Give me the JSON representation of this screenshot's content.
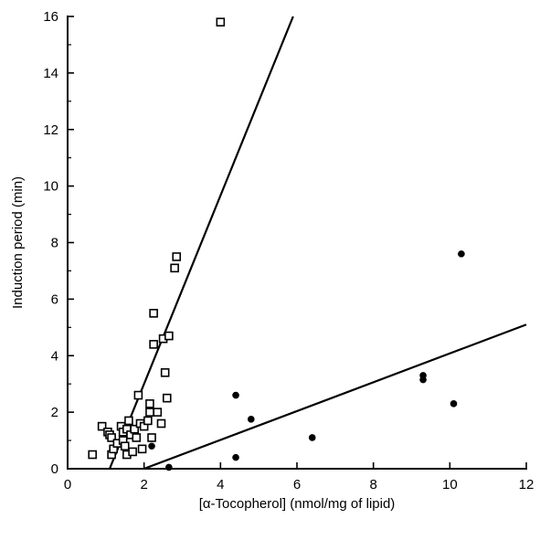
{
  "chart_data": {
    "type": "scatter",
    "xlabel": "[α-Tocopherol] (nmol/mg of lipid)",
    "ylabel": "Induction period (min)",
    "xlim": [
      0,
      12
    ],
    "ylim": [
      0,
      16
    ],
    "xticks": [
      0,
      2,
      4,
      6,
      8,
      10,
      12
    ],
    "yticks": [
      0,
      2,
      4,
      6,
      8,
      10,
      12,
      14,
      16
    ],
    "grid": false,
    "series": [
      {
        "marker": "open-square",
        "points": [
          [
            0.65,
            0.5
          ],
          [
            0.9,
            1.5
          ],
          [
            1.05,
            1.3
          ],
          [
            1.1,
            1.2
          ],
          [
            1.15,
            1.1
          ],
          [
            1.15,
            0.5
          ],
          [
            1.2,
            0.7
          ],
          [
            1.3,
            0.9
          ],
          [
            1.4,
            1.5
          ],
          [
            1.45,
            1.3
          ],
          [
            1.45,
            1.0
          ],
          [
            1.5,
            0.8
          ],
          [
            1.55,
            0.5
          ],
          [
            1.55,
            1.4
          ],
          [
            1.6,
            1.7
          ],
          [
            1.65,
            1.2
          ],
          [
            1.7,
            0.6
          ],
          [
            1.75,
            1.4
          ],
          [
            1.8,
            1.1
          ],
          [
            1.85,
            2.6
          ],
          [
            1.9,
            1.6
          ],
          [
            1.95,
            0.7
          ],
          [
            2.0,
            1.5
          ],
          [
            2.1,
            1.7
          ],
          [
            2.15,
            2.0
          ],
          [
            2.15,
            2.3
          ],
          [
            2.2,
            1.1
          ],
          [
            2.25,
            4.4
          ],
          [
            2.25,
            5.5
          ],
          [
            2.35,
            2.0
          ],
          [
            2.45,
            1.6
          ],
          [
            2.5,
            4.6
          ],
          [
            2.55,
            3.4
          ],
          [
            2.6,
            2.5
          ],
          [
            2.65,
            4.7
          ],
          [
            2.8,
            7.1
          ],
          [
            2.85,
            7.5
          ],
          [
            4.0,
            15.8
          ]
        ],
        "fit_line": [
          [
            1.1,
            0.0
          ],
          [
            5.9,
            16.0
          ]
        ]
      },
      {
        "marker": "filled-circle",
        "points": [
          [
            2.2,
            0.8
          ],
          [
            2.65,
            0.05
          ],
          [
            4.4,
            2.6
          ],
          [
            4.4,
            0.4
          ],
          [
            4.8,
            1.75
          ],
          [
            6.4,
            1.1
          ],
          [
            9.3,
            3.3
          ],
          [
            9.3,
            3.15
          ],
          [
            10.1,
            2.3
          ],
          [
            10.3,
            7.6
          ]
        ],
        "fit_line": [
          [
            2.0,
            0.0
          ],
          [
            12.0,
            5.1
          ]
        ]
      }
    ]
  }
}
